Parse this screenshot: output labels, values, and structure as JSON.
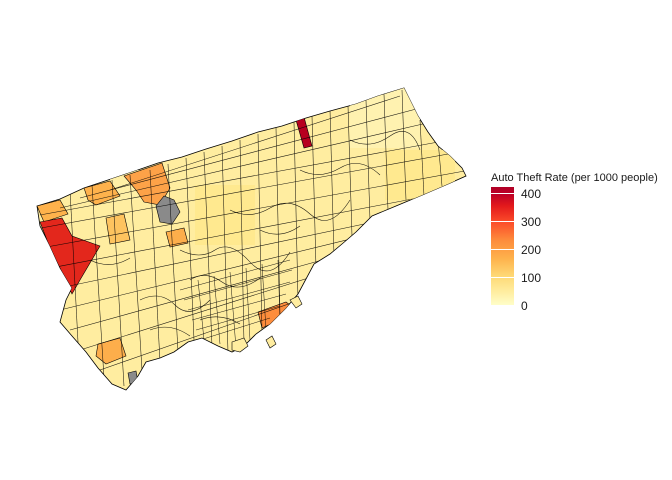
{
  "legend": {
    "title": "Auto Theft Rate (per 1000 people)",
    "ticks": [
      {
        "label": "400",
        "value": 400
      },
      {
        "label": "300",
        "value": 300
      },
      {
        "label": "200",
        "value": 200
      },
      {
        "label": "100",
        "value": 100
      },
      {
        "label": "0",
        "value": 0
      }
    ],
    "scale_min": 0,
    "scale_max": 425,
    "palette": [
      "#ffffcc",
      "#ffeda0",
      "#fed976",
      "#feb24c",
      "#fd8d3c",
      "#fc4e2a",
      "#e31a1c",
      "#bd0026"
    ]
  },
  "map": {
    "region_base_color": "#ffeda0",
    "missing_color": "#888888",
    "border_color": "#000000"
  }
}
